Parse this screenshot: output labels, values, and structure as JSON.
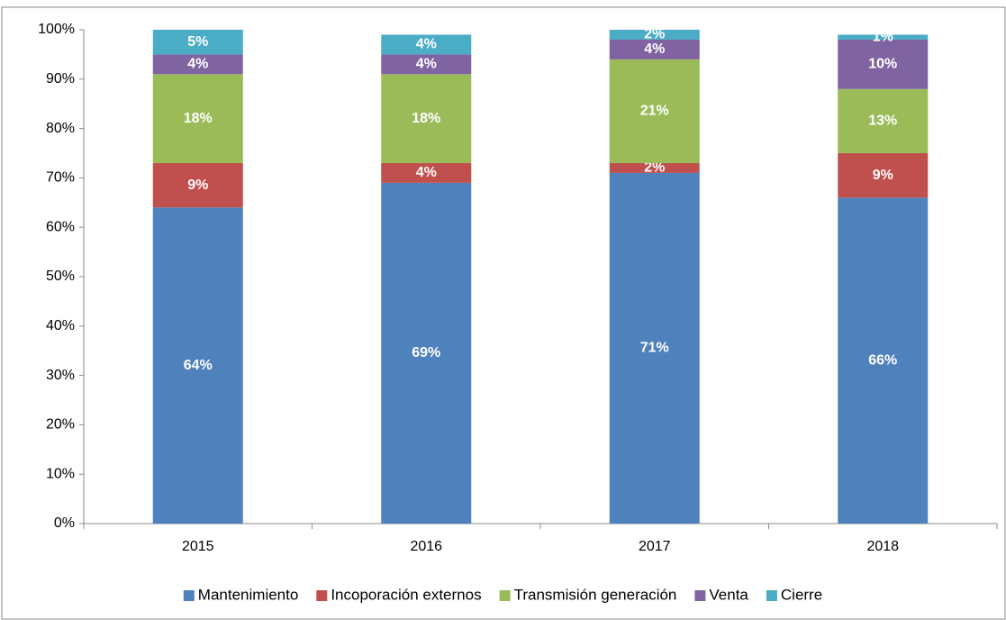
{
  "chart_data": {
    "type": "bar",
    "stacked": true,
    "categories": [
      "2015",
      "2016",
      "2017",
      "2018"
    ],
    "series": [
      {
        "name": "Mantenimiento",
        "color": "#4f81bd",
        "values": [
          64,
          69,
          71,
          66
        ],
        "value_labels": [
          "64%",
          "69%",
          "71%",
          "66%"
        ]
      },
      {
        "name": "Incoporación externos",
        "color": "#c0504d",
        "values": [
          9,
          4,
          2,
          9
        ],
        "value_labels": [
          "9%",
          "4%",
          "2%",
          "9%"
        ]
      },
      {
        "name": "Transmisión generación",
        "color": "#9bbb59",
        "values": [
          18,
          18,
          21,
          13
        ],
        "value_labels": [
          "18%",
          "18%",
          "21%",
          "13%"
        ]
      },
      {
        "name": "Venta",
        "color": "#8064a2",
        "values": [
          4,
          4,
          4,
          10
        ],
        "value_labels": [
          "4%",
          "4%",
          "4%",
          "10%"
        ]
      },
      {
        "name": "Cierre",
        "color": "#4bacc6",
        "values": [
          5,
          4,
          2,
          1
        ],
        "value_labels": [
          "5%",
          "4%",
          "2%",
          "1%"
        ]
      }
    ],
    "ylim": [
      0,
      100
    ],
    "yticks": [
      {
        "value": 0,
        "label": "0%"
      },
      {
        "value": 10,
        "label": "10%"
      },
      {
        "value": 20,
        "label": "20%"
      },
      {
        "value": 30,
        "label": "30%"
      },
      {
        "value": 40,
        "label": "40%"
      },
      {
        "value": 50,
        "label": "50%"
      },
      {
        "value": 60,
        "label": "60%"
      },
      {
        "value": 70,
        "label": "70%"
      },
      {
        "value": 80,
        "label": "80%"
      },
      {
        "value": 90,
        "label": "90%"
      },
      {
        "value": 100,
        "label": "100%"
      }
    ],
    "grid": false,
    "legend": "bottom"
  }
}
